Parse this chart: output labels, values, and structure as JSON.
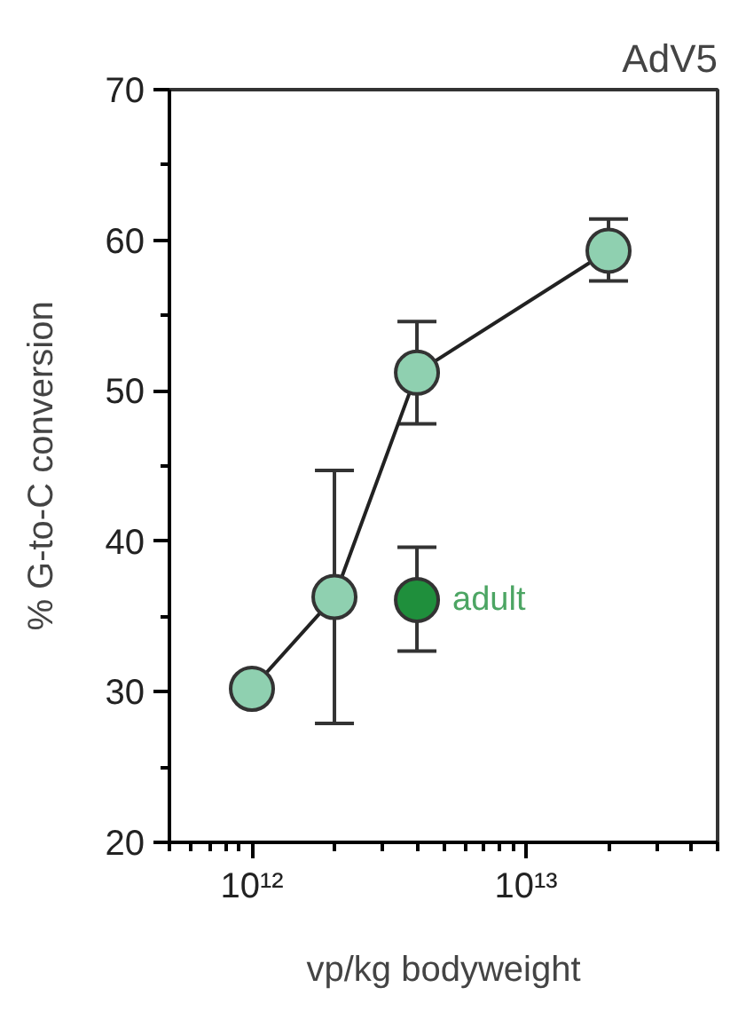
{
  "chart_data": {
    "type": "line",
    "title": "AdV5",
    "xlabel": "vp/kg bodyweight",
    "ylabel": "% G-to-C conversion",
    "log": "x",
    "grid": false,
    "marker": "circle",
    "line_style": "solid",
    "xlim": [
      500000000000.0,
      50000000000000.0
    ],
    "xticks": [
      {
        "value": 500000000000.0,
        "label": null
      },
      {
        "value": 600000000000.0,
        "label": null
      },
      {
        "value": 700000000000.0,
        "label": null
      },
      {
        "value": 800000000000.0,
        "label": null
      },
      {
        "value": 900000000000.0,
        "label": null
      },
      {
        "value": 1000000000000.0,
        "label": "10¹²"
      },
      {
        "value": 2000000000000.0,
        "label": null
      },
      {
        "value": 3000000000000.0,
        "label": null
      },
      {
        "value": 4000000000000.0,
        "label": null
      },
      {
        "value": 5000000000000.0,
        "label": null
      },
      {
        "value": 6000000000000.0,
        "label": null
      },
      {
        "value": 7000000000000.0,
        "label": null
      },
      {
        "value": 8000000000000.0,
        "label": null
      },
      {
        "value": 9000000000000.0,
        "label": null
      },
      {
        "value": 10000000000000.0,
        "label": "10¹³"
      },
      {
        "value": 20000000000000.0,
        "label": null
      },
      {
        "value": 30000000000000.0,
        "label": null
      },
      {
        "value": 40000000000000.0,
        "label": null
      },
      {
        "value": 50000000000000.0,
        "label": null
      }
    ],
    "ylim": [
      20,
      70
    ],
    "yticks": [
      20,
      {
        "value": 25,
        "label": null
      },
      30,
      {
        "value": 35,
        "label": null
      },
      40,
      {
        "value": 45,
        "label": null
      },
      50,
      {
        "value": 55,
        "label": null
      },
      60,
      {
        "value": 65,
        "label": null
      },
      70
    ],
    "series": [
      {
        "color": "#8fd0b0",
        "x": [
          1000000000000.0,
          2000000000000.0,
          4000000000000.0,
          20000000000000.0
        ],
        "values": [
          30.2,
          36.3,
          51.2,
          59.3
        ],
        "errors": [
          null,
          [
            27.9,
            44.7
          ],
          [
            47.8,
            54.6
          ],
          [
            57.3,
            61.4
          ]
        ]
      },
      {
        "type": "scatter",
        "name": "adult",
        "color": "#1f8f3c",
        "x": [
          4000000000000.0
        ],
        "values": [
          36.1
        ],
        "errors": [
          [
            32.7,
            39.6
          ]
        ]
      }
    ]
  }
}
